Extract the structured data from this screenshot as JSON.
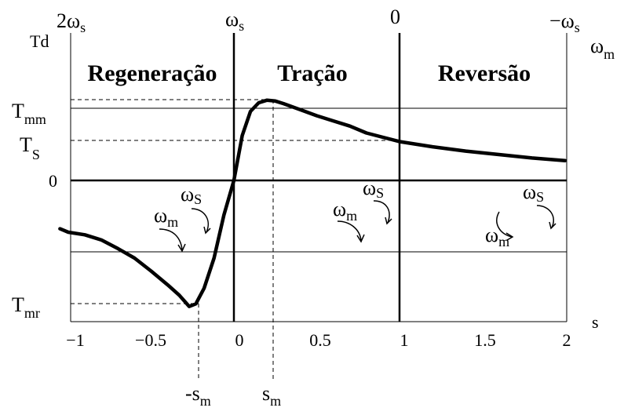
{
  "top_axis": {
    "left": {
      "main": "2ω",
      "sub": "s"
    },
    "mid": {
      "main": "ω",
      "sub": "s"
    },
    "zero": "0",
    "right": {
      "main": "−ω",
      "sub": "s"
    },
    "unit": {
      "main": "ω",
      "sub": "m"
    }
  },
  "y_axis": {
    "title": "Td",
    "tmm": {
      "main": "T",
      "sub": "mm"
    },
    "ts": {
      "main": "T",
      "sub": "S"
    },
    "zero": "0",
    "tmr": {
      "main": "T",
      "sub": "mr"
    }
  },
  "regions": [
    "Regeneração",
    "Tração",
    "Reversão"
  ],
  "x_axis": {
    "ticks": [
      "−1",
      "−0.5",
      "0",
      "0.5",
      "1",
      "1.5",
      "2"
    ],
    "title": "s",
    "sm_neg": {
      "main": "-s",
      "sub": "m"
    },
    "sm_pos": {
      "main": "s",
      "sub": "m"
    }
  },
  "rotation_labels": {
    "regen": {
      "wm": {
        "main": "ω",
        "sub": "m"
      },
      "ws": {
        "main": "ω",
        "sub": "S"
      }
    },
    "traction": {
      "wm": {
        "main": "ω",
        "sub": "m"
      },
      "ws": {
        "main": "ω",
        "sub": "S"
      }
    },
    "reversal": {
      "wm": {
        "main": "ω",
        "sub": "m"
      },
      "ws": {
        "main": "ω",
        "sub": "S"
      }
    }
  },
  "chart_data": {
    "type": "line",
    "x": [
      -1.05,
      -1.0,
      -0.9,
      -0.8,
      -0.7,
      -0.6,
      -0.5,
      -0.4,
      -0.33,
      -0.27,
      -0.23,
      -0.18,
      -0.12,
      -0.06,
      0.0,
      0.05,
      0.1,
      0.15,
      0.2,
      0.25,
      0.3,
      0.4,
      0.5,
      0.6,
      0.7,
      0.8,
      0.9,
      1.0,
      1.2,
      1.4,
      1.6,
      1.8,
      2.0
    ],
    "y": [
      -0.56,
      -0.6,
      -0.63,
      -0.69,
      -0.79,
      -0.9,
      -1.05,
      -1.21,
      -1.33,
      -1.46,
      -1.43,
      -1.25,
      -0.9,
      -0.4,
      0.0,
      0.52,
      0.8,
      0.9,
      0.93,
      0.92,
      0.89,
      0.82,
      0.75,
      0.69,
      0.63,
      0.55,
      0.5,
      0.45,
      0.39,
      0.34,
      0.3,
      0.26,
      0.23
    ],
    "xlim": [
      -1.1,
      2.0
    ],
    "xticks": [
      -1,
      -0.5,
      0,
      0.5,
      1,
      1.5,
      2
    ],
    "markers": {
      "sm": 0.23,
      "neg_sm": -0.23,
      "Tmm": 0.93,
      "Ts": 0.47,
      "Tmr": -1.46
    }
  }
}
